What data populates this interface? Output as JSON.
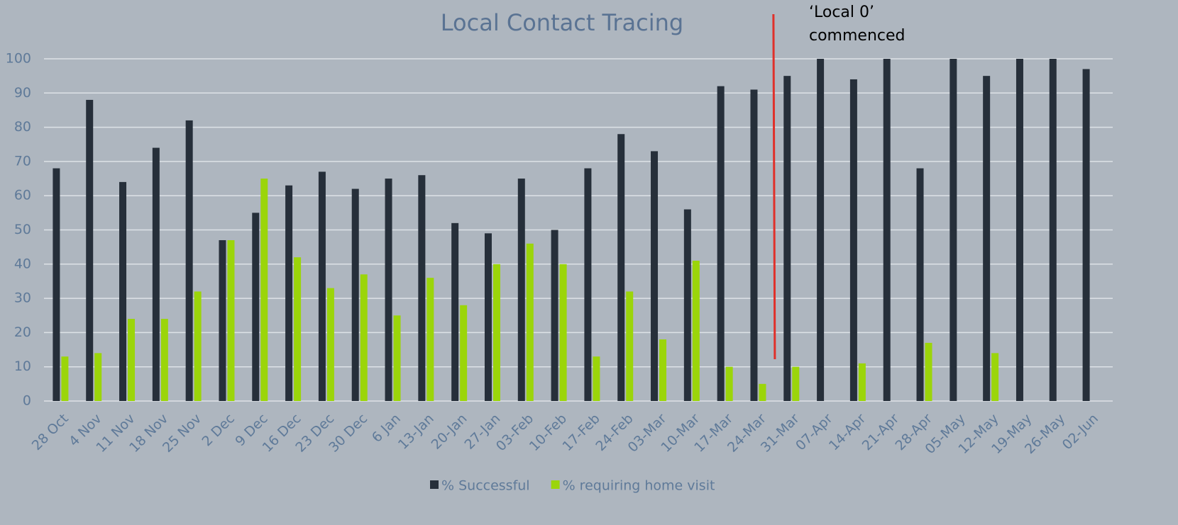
{
  "chart_data": {
    "type": "bar",
    "title": "Local Contact Tracing",
    "categories": [
      "28 Oct",
      "4 Nov",
      "11 Nov",
      "18 Nov",
      "25 Nov",
      "2 Dec",
      "9 Dec",
      "16 Dec",
      "23 Dec",
      "30 Dec",
      "6 Jan",
      "13-Jan",
      "20-Jan",
      "27-Jan",
      "03-Feb",
      "10-Feb",
      "17-Feb",
      "24-Feb",
      "03-Mar",
      "10-Mar",
      "17-Mar",
      "24-Mar",
      "31-Mar",
      "07-Apr",
      "14-Apr",
      "21-Apr",
      "28-Apr",
      "05-May",
      "12-May",
      "19-May",
      "26-May",
      "02-Jun"
    ],
    "series": [
      {
        "name": "% Successful",
        "color": "#262f3a",
        "values": [
          68,
          88,
          64,
          74,
          82,
          47,
          55,
          63,
          67,
          62,
          65,
          66,
          52,
          49,
          65,
          50,
          68,
          78,
          73,
          56,
          92,
          91,
          95,
          100,
          94,
          100,
          68,
          100,
          95,
          100,
          100,
          97
        ]
      },
      {
        "name": "% requiring home visit",
        "color": "#9bd50a",
        "values": [
          13,
          14,
          24,
          24,
          32,
          47,
          65,
          42,
          33,
          37,
          25,
          36,
          28,
          40,
          46,
          40,
          13,
          32,
          18,
          41,
          10,
          5,
          10,
          null,
          11,
          null,
          17,
          null,
          14,
          null,
          null,
          null
        ]
      }
    ],
    "ylim": [
      0,
      100
    ],
    "yticks": [
      0,
      10,
      20,
      30,
      40,
      50,
      60,
      70,
      80,
      90,
      100
    ],
    "grid": true,
    "annotation": {
      "text": [
        "‘Local 0’",
        "commenced"
      ],
      "color": "#e0302a"
    },
    "legend": "bottom"
  }
}
